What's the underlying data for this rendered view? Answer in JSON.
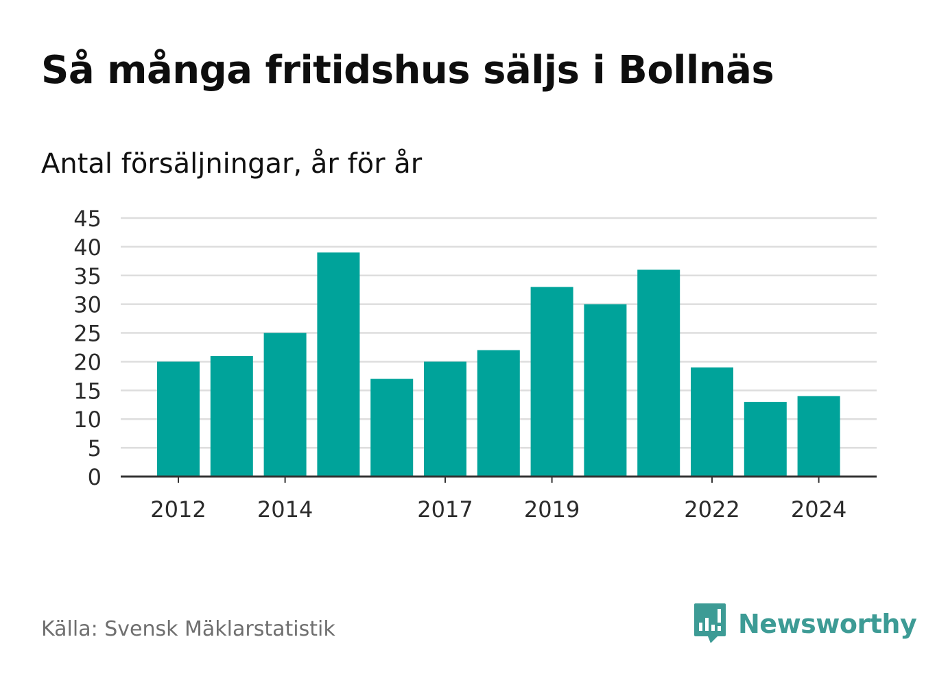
{
  "header": {
    "title": "Så många fritidshus säljs i Bollnäs",
    "subtitle": "Antal försäljningar, år för år"
  },
  "footer": {
    "source": "Källa: Svensk Mäklarstatistik",
    "brand_name": "Newsworthy",
    "brand_icon": "bar-chart-speech-bubble-icon"
  },
  "colors": {
    "bar": "#00a39a",
    "grid": "#dddddd",
    "axis": "#333333",
    "brand": "#3d9b95"
  },
  "chart_data": {
    "type": "bar",
    "x": [
      2012,
      2013,
      2014,
      2015,
      2016,
      2017,
      2018,
      2019,
      2020,
      2021,
      2022,
      2023,
      2024
    ],
    "values": [
      20,
      21,
      25,
      39,
      17,
      20,
      22,
      33,
      30,
      36,
      19,
      13,
      14
    ],
    "x_tick_labels": [
      "2012",
      "2014",
      "2017",
      "2019",
      "2022",
      "2024"
    ],
    "y_ticks": [
      0,
      5,
      10,
      15,
      20,
      25,
      30,
      35,
      40,
      45
    ],
    "ylim": [
      0,
      45
    ],
    "grid": "horizontal",
    "legend": "none"
  }
}
